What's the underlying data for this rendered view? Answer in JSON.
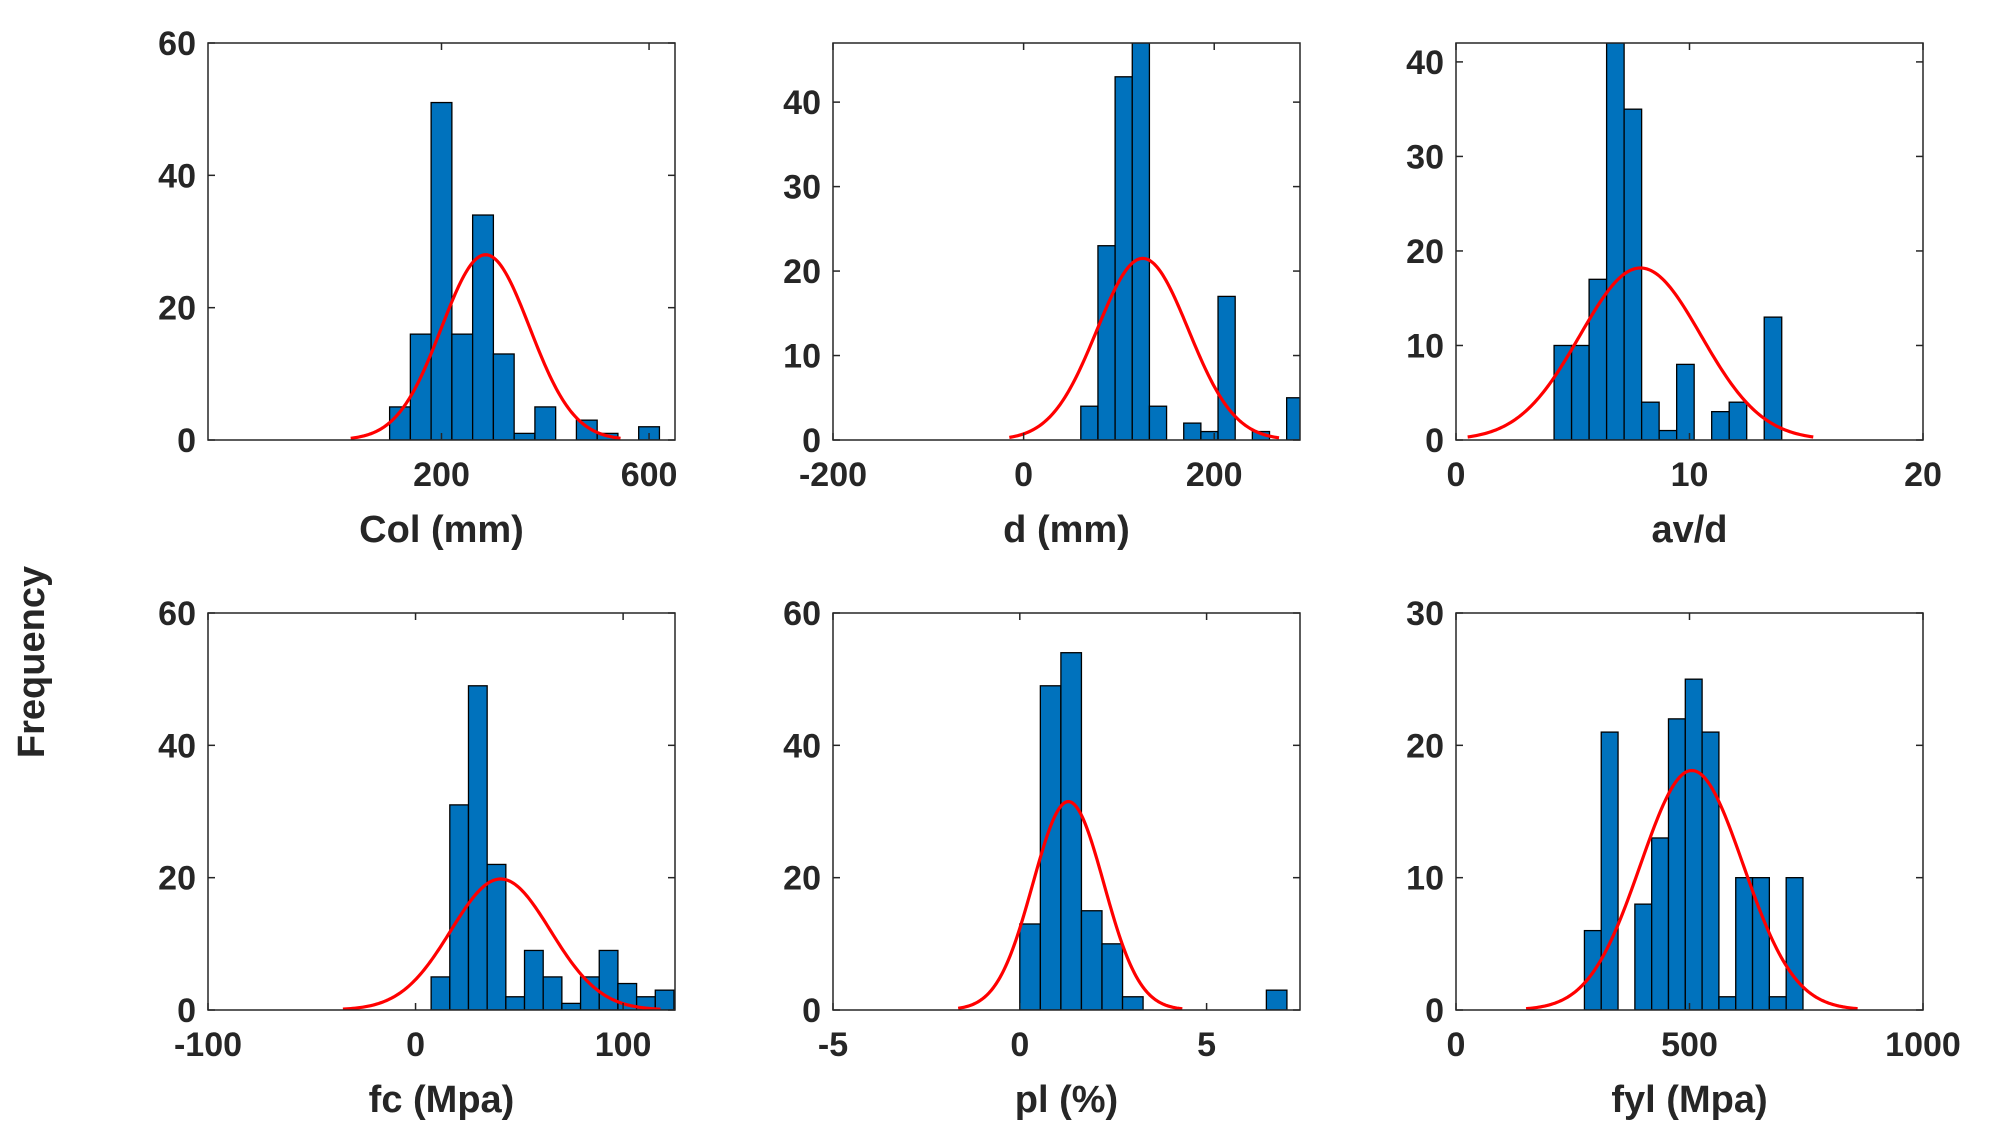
{
  "figure": {
    "ylabel": "Frequency",
    "bar_color": "#0072BD",
    "bar_edge_color": "#000000",
    "fit_color": "#FF0000"
  },
  "chart_data": [
    {
      "type": "histogram",
      "xlabel": "Col (mm)",
      "xlim": [
        -250,
        650
      ],
      "ylim": [
        0,
        60
      ],
      "xticks": [
        200,
        600
      ],
      "yticks": [
        0,
        20,
        40,
        60
      ],
      "bins": [
        {
          "x0": 100,
          "x1": 140,
          "count": 5
        },
        {
          "x0": 140,
          "x1": 180,
          "count": 16
        },
        {
          "x0": 180,
          "x1": 220,
          "count": 51
        },
        {
          "x0": 220,
          "x1": 260,
          "count": 16
        },
        {
          "x0": 260,
          "x1": 300,
          "count": 34
        },
        {
          "x0": 300,
          "x1": 340,
          "count": 13
        },
        {
          "x0": 340,
          "x1": 380,
          "count": 1
        },
        {
          "x0": 380,
          "x1": 420,
          "count": 5
        },
        {
          "x0": 420,
          "x1": 460,
          "count": 0
        },
        {
          "x0": 460,
          "x1": 500,
          "count": 3
        },
        {
          "x0": 500,
          "x1": 540,
          "count": 1
        },
        {
          "x0": 540,
          "x1": 580,
          "count": 0
        },
        {
          "x0": 580,
          "x1": 620,
          "count": 2
        }
      ],
      "fit": {
        "mean": 285,
        "sd": 85,
        "peak": 28,
        "x_range": [
          25,
          545
        ]
      }
    },
    {
      "type": "histogram",
      "xlabel": "d (mm)",
      "xlim": [
        -200,
        290
      ],
      "ylim": [
        0,
        47
      ],
      "xticks": [
        -200,
        0,
        200
      ],
      "yticks": [
        0,
        10,
        20,
        30,
        40
      ],
      "bins": [
        {
          "x0": 60,
          "x1": 78,
          "count": 4
        },
        {
          "x0": 78,
          "x1": 96,
          "count": 23
        },
        {
          "x0": 96,
          "x1": 114,
          "count": 43
        },
        {
          "x0": 114,
          "x1": 132,
          "count": 47
        },
        {
          "x0": 132,
          "x1": 150,
          "count": 4
        },
        {
          "x0": 150,
          "x1": 168,
          "count": 0
        },
        {
          "x0": 168,
          "x1": 186,
          "count": 2
        },
        {
          "x0": 186,
          "x1": 204,
          "count": 1
        },
        {
          "x0": 204,
          "x1": 222,
          "count": 17
        },
        {
          "x0": 222,
          "x1": 240,
          "count": 0
        },
        {
          "x0": 240,
          "x1": 258,
          "count": 1
        },
        {
          "x0": 258,
          "x1": 276,
          "count": 0
        },
        {
          "x0": 276,
          "x1": 294,
          "count": 5
        }
      ],
      "fit": {
        "mean": 125,
        "sd": 48,
        "peak": 21.5,
        "x_range": [
          -15,
          268
        ]
      }
    },
    {
      "type": "histogram",
      "xlabel": "av/d",
      "xlim": [
        0,
        20
      ],
      "ylim": [
        0,
        42
      ],
      "xticks": [
        0,
        10,
        20
      ],
      "yticks": [
        0,
        10,
        20,
        30,
        40
      ],
      "bins": [
        {
          "x0": 4.2,
          "x1": 4.95,
          "count": 10
        },
        {
          "x0": 4.95,
          "x1": 5.7,
          "count": 10
        },
        {
          "x0": 5.7,
          "x1": 6.45,
          "count": 17
        },
        {
          "x0": 6.45,
          "x1": 7.2,
          "count": 42
        },
        {
          "x0": 7.2,
          "x1": 7.95,
          "count": 35
        },
        {
          "x0": 7.95,
          "x1": 8.7,
          "count": 4
        },
        {
          "x0": 8.7,
          "x1": 9.45,
          "count": 1
        },
        {
          "x0": 9.45,
          "x1": 10.2,
          "count": 8
        },
        {
          "x0": 10.2,
          "x1": 10.95,
          "count": 0
        },
        {
          "x0": 10.95,
          "x1": 11.7,
          "count": 3
        },
        {
          "x0": 11.7,
          "x1": 12.45,
          "count": 4
        },
        {
          "x0": 12.45,
          "x1": 13.2,
          "count": 0
        },
        {
          "x0": 13.2,
          "x1": 13.95,
          "count": 13
        }
      ],
      "fit": {
        "mean": 7.9,
        "sd": 2.6,
        "peak": 18.2,
        "x_range": [
          0.5,
          15.3
        ]
      }
    },
    {
      "type": "histogram",
      "xlabel": "fc (Mpa)",
      "xlim": [
        -100,
        125
      ],
      "ylim": [
        0,
        60
      ],
      "xticks": [
        -100,
        0,
        100
      ],
      "yticks": [
        0,
        20,
        40,
        60
      ],
      "bins": [
        {
          "x0": 7.5,
          "x1": 16.5,
          "count": 5
        },
        {
          "x0": 16.5,
          "x1": 25.5,
          "count": 31
        },
        {
          "x0": 25.5,
          "x1": 34.5,
          "count": 49
        },
        {
          "x0": 34.5,
          "x1": 43.5,
          "count": 22
        },
        {
          "x0": 43.5,
          "x1": 52.5,
          "count": 2
        },
        {
          "x0": 52.5,
          "x1": 61.5,
          "count": 9
        },
        {
          "x0": 61.5,
          "x1": 70.5,
          "count": 5
        },
        {
          "x0": 70.5,
          "x1": 79.5,
          "count": 1
        },
        {
          "x0": 79.5,
          "x1": 88.5,
          "count": 5
        },
        {
          "x0": 88.5,
          "x1": 97.5,
          "count": 9
        },
        {
          "x0": 97.5,
          "x1": 106.5,
          "count": 4
        },
        {
          "x0": 106.5,
          "x1": 115.5,
          "count": 2
        },
        {
          "x0": 115.5,
          "x1": 124.5,
          "count": 3
        }
      ],
      "fit": {
        "mean": 41,
        "sd": 24,
        "peak": 19.8,
        "x_range": [
          -35,
          118
        ]
      }
    },
    {
      "type": "histogram",
      "xlabel": "pl (%)",
      "xlim": [
        -5,
        7.5
      ],
      "ylim": [
        0,
        60
      ],
      "xticks": [
        -5,
        0,
        5
      ],
      "yticks": [
        0,
        20,
        40,
        60
      ],
      "bins": [
        {
          "x0": 0.0,
          "x1": 0.55,
          "count": 13
        },
        {
          "x0": 0.55,
          "x1": 1.1,
          "count": 49
        },
        {
          "x0": 1.1,
          "x1": 1.65,
          "count": 54
        },
        {
          "x0": 1.65,
          "x1": 2.2,
          "count": 15
        },
        {
          "x0": 2.2,
          "x1": 2.75,
          "count": 10
        },
        {
          "x0": 2.75,
          "x1": 3.3,
          "count": 2
        },
        {
          "x0": 3.3,
          "x1": 3.85,
          "count": 0
        },
        {
          "x0": 3.85,
          "x1": 4.4,
          "count": 0
        },
        {
          "x0": 4.4,
          "x1": 4.95,
          "count": 0
        },
        {
          "x0": 4.95,
          "x1": 5.5,
          "count": 0
        },
        {
          "x0": 5.5,
          "x1": 6.05,
          "count": 0
        },
        {
          "x0": 6.05,
          "x1": 6.6,
          "count": 0
        },
        {
          "x0": 6.6,
          "x1": 7.15,
          "count": 3
        }
      ],
      "fit": {
        "mean": 1.3,
        "sd": 0.95,
        "peak": 31.5,
        "x_range": [
          -1.65,
          4.35
        ]
      }
    },
    {
      "type": "histogram",
      "xlabel": "fyl (Mpa)",
      "xlim": [
        0,
        1000
      ],
      "ylim": [
        0,
        30
      ],
      "xticks": [
        0,
        500,
        1000
      ],
      "yticks": [
        0,
        10,
        20,
        30
      ],
      "bins": [
        {
          "x0": 275,
          "x1": 311,
          "count": 6
        },
        {
          "x0": 311,
          "x1": 347,
          "count": 21
        },
        {
          "x0": 347,
          "x1": 383,
          "count": 0
        },
        {
          "x0": 383,
          "x1": 419,
          "count": 8
        },
        {
          "x0": 419,
          "x1": 455,
          "count": 13
        },
        {
          "x0": 455,
          "x1": 491,
          "count": 22
        },
        {
          "x0": 491,
          "x1": 527,
          "count": 25
        },
        {
          "x0": 527,
          "x1": 563,
          "count": 21
        },
        {
          "x0": 563,
          "x1": 599,
          "count": 1
        },
        {
          "x0": 599,
          "x1": 635,
          "count": 10
        },
        {
          "x0": 635,
          "x1": 671,
          "count": 10
        },
        {
          "x0": 671,
          "x1": 707,
          "count": 1
        },
        {
          "x0": 707,
          "x1": 743,
          "count": 10
        }
      ],
      "fit": {
        "mean": 505,
        "sd": 110,
        "peak": 18.1,
        "x_range": [
          150,
          860
        ]
      }
    }
  ]
}
